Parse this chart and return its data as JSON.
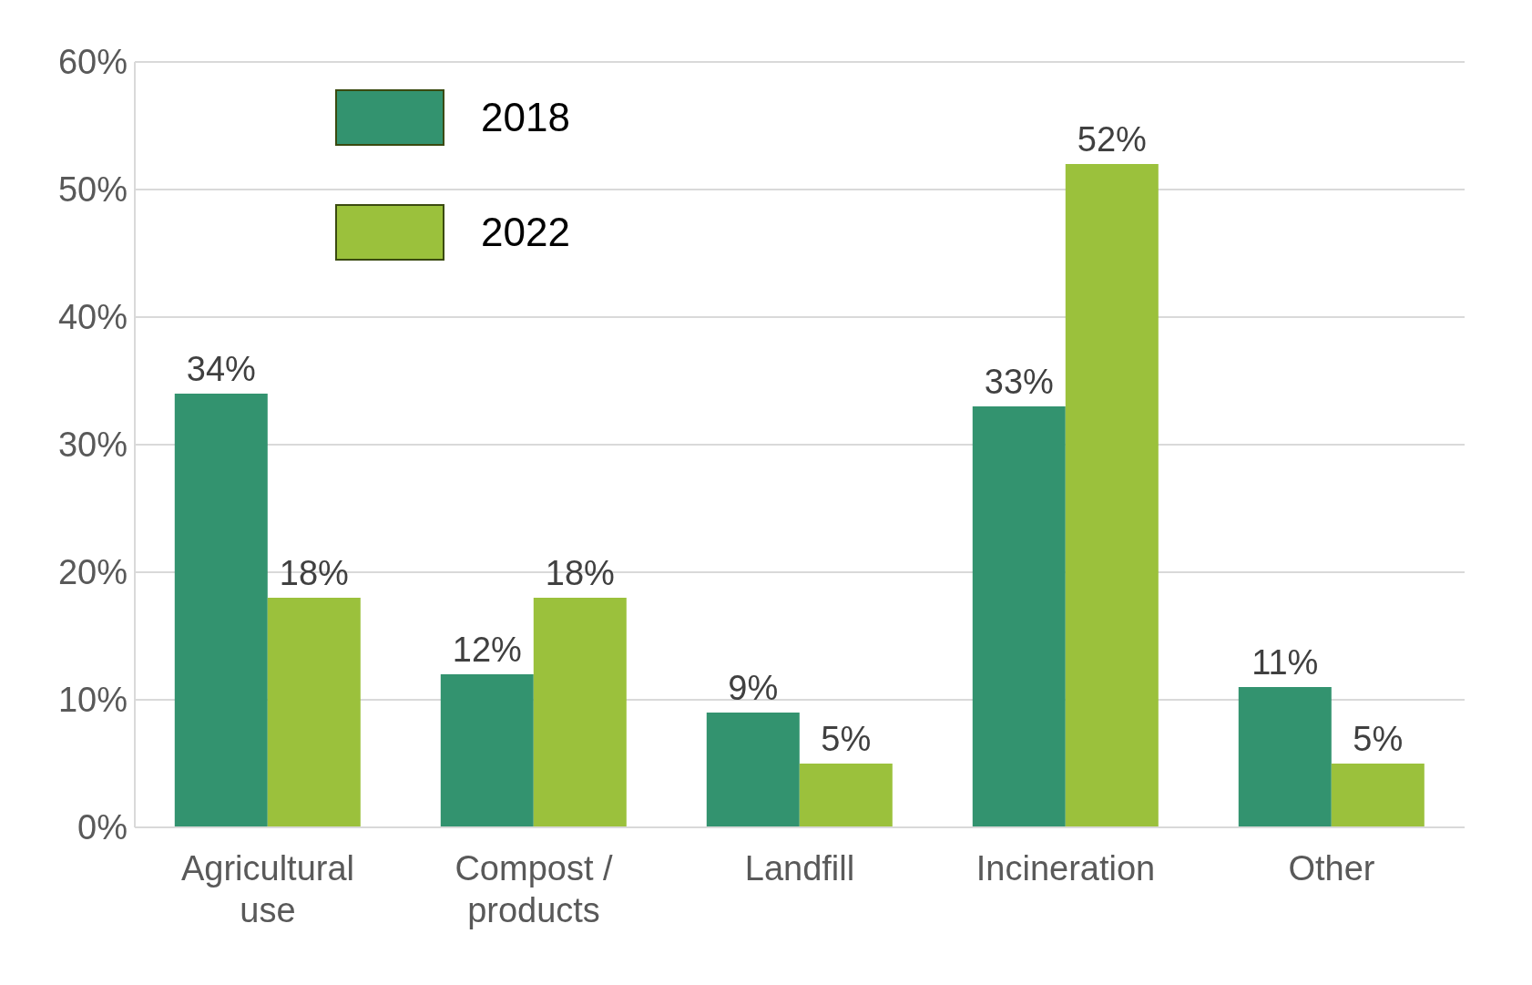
{
  "chart_data": {
    "type": "bar",
    "categories": [
      "Agricultural use",
      "Compost / products",
      "Landfill",
      "Incineration",
      "Other"
    ],
    "series": [
      {
        "name": "2018",
        "color": "#33936f",
        "values": [
          34,
          12,
          9,
          33,
          11
        ],
        "value_labels": [
          "34%",
          "12%",
          "9%",
          "33%",
          "11%"
        ]
      },
      {
        "name": "2022",
        "color": "#9bc13c",
        "values": [
          18,
          18,
          5,
          52,
          5
        ],
        "value_labels": [
          "18%",
          "18%",
          "5%",
          "52%",
          "5%"
        ]
      }
    ],
    "ylim": [
      0,
      60
    ],
    "yticks": [
      {
        "value": 0,
        "label": "0%"
      },
      {
        "value": 10,
        "label": "10%"
      },
      {
        "value": 20,
        "label": "20%"
      },
      {
        "value": 30,
        "label": "30%"
      },
      {
        "value": 40,
        "label": "40%"
      },
      {
        "value": 50,
        "label": "50%"
      },
      {
        "value": 60,
        "label": "60%"
      }
    ],
    "grid": "y",
    "legend": "top left"
  }
}
